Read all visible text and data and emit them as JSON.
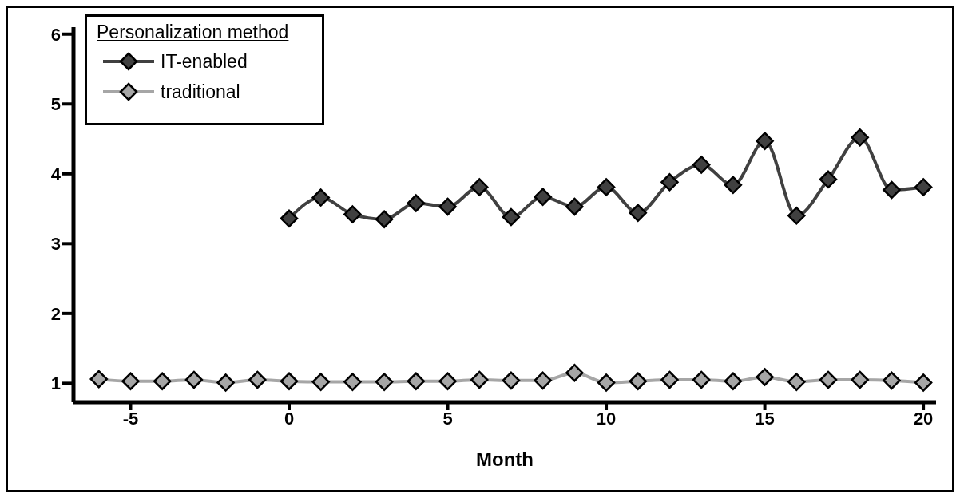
{
  "chart_data": {
    "type": "line",
    "xlabel": "Month",
    "legend_title": "Personalization method",
    "legend": "top left",
    "marker": "diamond",
    "line_style": "solid",
    "grid": false,
    "xlim": [
      -6.8,
      20.4
    ],
    "xticks": [
      -5,
      0,
      5,
      10,
      15,
      20
    ],
    "ylim": [
      0.73,
      6.1
    ],
    "yticks": [
      1,
      2,
      3,
      4,
      5,
      6
    ],
    "series": [
      {
        "name": "IT-enabled",
        "color": "#404040",
        "x": [
          0,
          1,
          2,
          3,
          4,
          5,
          6,
          7,
          8,
          9,
          10,
          11,
          12,
          13,
          14,
          15,
          16,
          17,
          18,
          19,
          20
        ],
        "values": [
          3.36,
          3.66,
          3.42,
          3.35,
          3.58,
          3.53,
          3.81,
          3.38,
          3.67,
          3.53,
          3.81,
          3.44,
          3.88,
          4.13,
          3.84,
          4.47,
          3.4,
          3.92,
          4.52,
          3.77,
          3.81
        ]
      },
      {
        "name": "traditional",
        "color": "#a6a6a6",
        "x": [
          -6,
          -5,
          -4,
          -3,
          -2,
          -1,
          0,
          1,
          2,
          3,
          4,
          5,
          6,
          7,
          8,
          9,
          10,
          11,
          12,
          13,
          14,
          15,
          16,
          17,
          18,
          19,
          20
        ],
        "values": [
          1.06,
          1.03,
          1.03,
          1.05,
          1.01,
          1.05,
          1.03,
          1.02,
          1.02,
          1.02,
          1.03,
          1.03,
          1.05,
          1.04,
          1.04,
          1.15,
          1.01,
          1.03,
          1.05,
          1.05,
          1.03,
          1.09,
          1.02,
          1.05,
          1.05,
          1.04,
          1.01
        ]
      }
    ]
  }
}
